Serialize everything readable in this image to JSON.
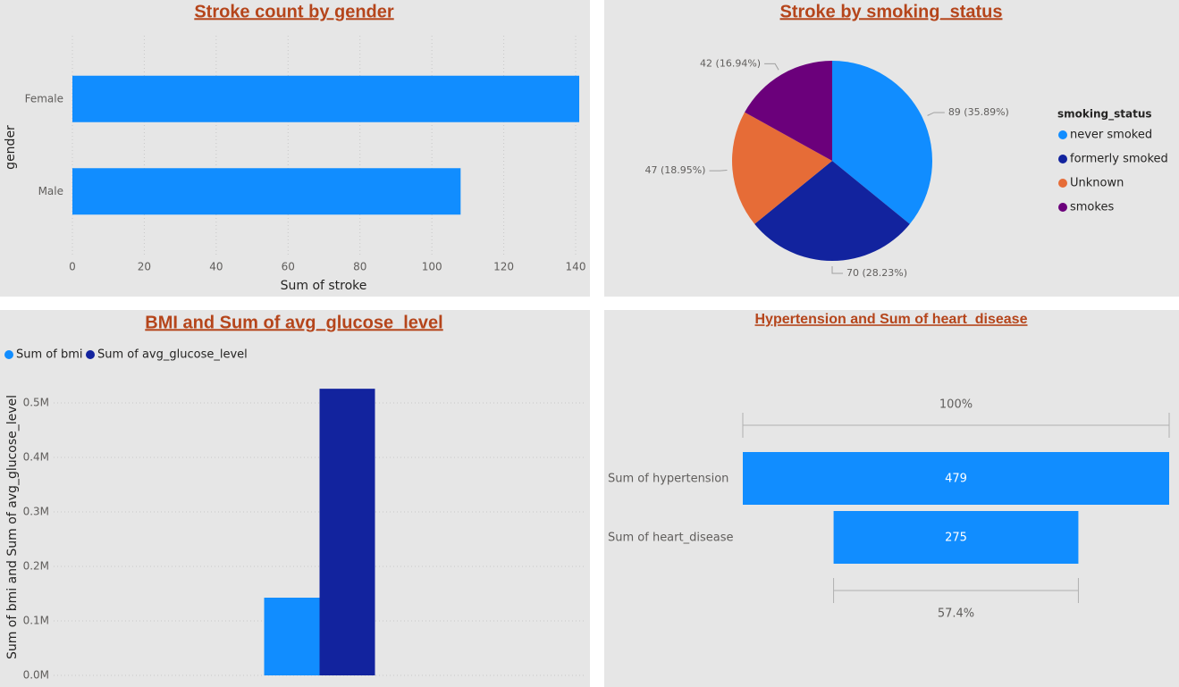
{
  "chart_data": [
    {
      "type": "hbar",
      "title": "Stroke count by gender",
      "categories": [
        "Female",
        "Male"
      ],
      "values": [
        141,
        108
      ],
      "color": "#118dff",
      "xlabel": "Sum of stroke",
      "ylabel": "gender",
      "xlim": [
        0,
        141
      ],
      "xticks": [
        0,
        20,
        40,
        60,
        80,
        100,
        120,
        140
      ],
      "grid": true
    },
    {
      "type": "pie",
      "title": "Stroke by smoking_status",
      "legend_title": "smoking_status",
      "categories": [
        "never smoked",
        "formerly smoked",
        "Unknown",
        "smokes"
      ],
      "values": [
        89,
        70,
        47,
        42
      ],
      "value_labels": [
        "89 (35.89%)",
        "70 (28.23%)",
        "47 (18.95%)",
        "42 (16.94%)"
      ],
      "colors": [
        "#118dff",
        "#12239e",
        "#e66c37",
        "#6b007b"
      ],
      "legend": "right"
    },
    {
      "type": "column",
      "title": "BMI and Sum of avg_glucose_level",
      "ylabel": "Sum of bmi and Sum of avg_glucose_level",
      "categories": [
        null
      ],
      "series": [
        {
          "name": "Sum of bmi",
          "color": "#118dff",
          "values": [
            142600
          ]
        },
        {
          "name": "Sum of avg_glucose_level",
          "color": "#12239e",
          "values": [
            526000
          ]
        }
      ],
      "ylim": [
        0,
        550000
      ],
      "yticks": [
        {
          "value": 0,
          "label": "0.0M"
        },
        {
          "value": 100000,
          "label": "0.1M"
        },
        {
          "value": 200000,
          "label": "0.2M"
        },
        {
          "value": 300000,
          "label": "0.3M"
        },
        {
          "value": 400000,
          "label": "0.4M"
        },
        {
          "value": 500000,
          "label": "0.5M"
        }
      ],
      "grid": true,
      "legend": "top-left"
    },
    {
      "type": "funnel",
      "title": "Hypertension and Sum of heart_disease",
      "categories": [
        "Sum of hypertension",
        "Sum of heart_disease"
      ],
      "values": [
        479,
        275
      ],
      "color": "#118dff",
      "conversion_labels": [
        "100%",
        "57.4%"
      ]
    }
  ]
}
